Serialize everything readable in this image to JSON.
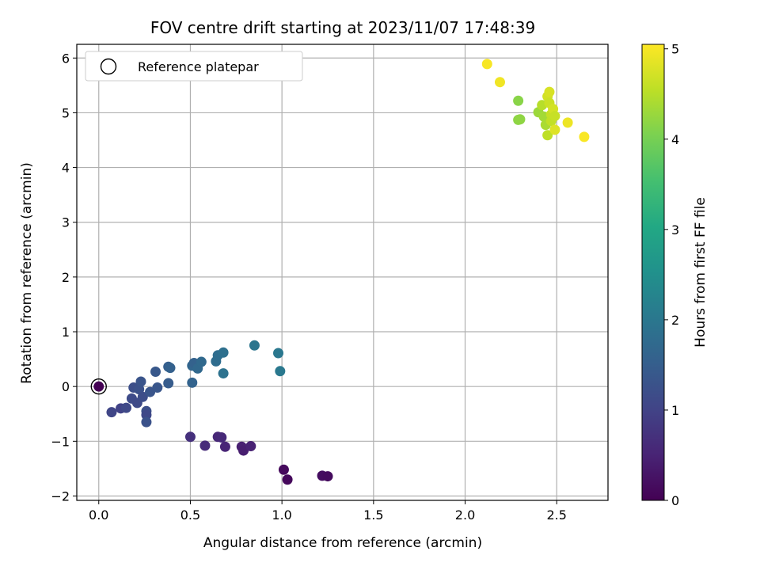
{
  "chart_data": {
    "type": "scatter",
    "title": "FOV centre drift starting at 2023/11/07 17:48:39",
    "xlabel": "Angular distance from reference (arcmin)",
    "ylabel": "Rotation from reference (arcmin)",
    "xlim": [
      -0.12,
      2.78
    ],
    "ylim": [
      -2.08,
      6.25
    ],
    "xticks": [
      0.0,
      0.5,
      1.0,
      1.5,
      2.0,
      2.5
    ],
    "xtick_labels": [
      "0.0",
      "0.5",
      "1.0",
      "1.5",
      "2.0",
      "2.5"
    ],
    "yticks": [
      -2,
      -1,
      0,
      1,
      2,
      3,
      4,
      5,
      6
    ],
    "ytick_labels": [
      "−2",
      "−1",
      "0",
      "1",
      "2",
      "3",
      "4",
      "5",
      "6"
    ],
    "grid": true,
    "legend": {
      "position": "upper-left",
      "entries": [
        {
          "label": "Reference platepar",
          "marker": "open-circle"
        }
      ]
    },
    "colorbar": {
      "label": "Hours from first FF file",
      "colormap": "viridis",
      "range": [
        0,
        5.05
      ],
      "ticks": [
        0,
        1,
        2,
        3,
        4,
        5
      ],
      "tick_labels": [
        "0",
        "1",
        "2",
        "3",
        "4",
        "5"
      ]
    },
    "reference_point": {
      "x": 0.0,
      "y": 0.0
    },
    "points": [
      {
        "x": 0.0,
        "y": 0.0,
        "c": 0.0
      },
      {
        "x": 1.01,
        "y": -1.52,
        "c": 0.12
      },
      {
        "x": 1.03,
        "y": -1.7,
        "c": 0.1
      },
      {
        "x": 1.22,
        "y": -1.63,
        "c": 0.18
      },
      {
        "x": 1.25,
        "y": -1.64,
        "c": 0.15
      },
      {
        "x": 0.78,
        "y": -1.1,
        "c": 0.45
      },
      {
        "x": 0.79,
        "y": -1.17,
        "c": 0.42
      },
      {
        "x": 0.83,
        "y": -1.09,
        "c": 0.48
      },
      {
        "x": 0.65,
        "y": -0.92,
        "c": 0.55
      },
      {
        "x": 0.67,
        "y": -0.93,
        "c": 0.58
      },
      {
        "x": 0.69,
        "y": -1.1,
        "c": 0.52
      },
      {
        "x": 0.58,
        "y": -1.08,
        "c": 0.62
      },
      {
        "x": 0.5,
        "y": -0.92,
        "c": 0.7
      },
      {
        "x": 0.07,
        "y": -0.47,
        "c": 1.05
      },
      {
        "x": 0.12,
        "y": -0.4,
        "c": 1.0
      },
      {
        "x": 0.15,
        "y": -0.39,
        "c": 1.1
      },
      {
        "x": 0.18,
        "y": -0.22,
        "c": 1.15
      },
      {
        "x": 0.19,
        "y": -0.02,
        "c": 1.2
      },
      {
        "x": 0.21,
        "y": -0.3,
        "c": 1.12
      },
      {
        "x": 0.22,
        "y": -0.05,
        "c": 1.25
      },
      {
        "x": 0.23,
        "y": 0.09,
        "c": 1.3
      },
      {
        "x": 0.24,
        "y": -0.19,
        "c": 1.18
      },
      {
        "x": 0.26,
        "y": -0.45,
        "c": 1.22
      },
      {
        "x": 0.26,
        "y": -0.52,
        "c": 1.08
      },
      {
        "x": 0.26,
        "y": -0.65,
        "c": 1.28
      },
      {
        "x": 0.28,
        "y": -0.1,
        "c": 1.32
      },
      {
        "x": 0.31,
        "y": 0.27,
        "c": 1.38
      },
      {
        "x": 0.32,
        "y": -0.02,
        "c": 1.35
      },
      {
        "x": 0.38,
        "y": 0.06,
        "c": 1.45
      },
      {
        "x": 0.38,
        "y": 0.36,
        "c": 1.5
      },
      {
        "x": 0.39,
        "y": 0.34,
        "c": 1.55
      },
      {
        "x": 0.51,
        "y": 0.07,
        "c": 1.6
      },
      {
        "x": 0.51,
        "y": 0.38,
        "c": 1.65
      },
      {
        "x": 0.52,
        "y": 0.43,
        "c": 1.58
      },
      {
        "x": 0.54,
        "y": 0.33,
        "c": 1.7
      },
      {
        "x": 0.56,
        "y": 0.45,
        "c": 1.72
      },
      {
        "x": 0.64,
        "y": 0.46,
        "c": 1.78
      },
      {
        "x": 0.65,
        "y": 0.57,
        "c": 1.8
      },
      {
        "x": 0.68,
        "y": 0.62,
        "c": 1.85
      },
      {
        "x": 0.68,
        "y": 0.24,
        "c": 1.9
      },
      {
        "x": 0.85,
        "y": 0.75,
        "c": 1.95
      },
      {
        "x": 0.98,
        "y": 0.61,
        "c": 2.0
      },
      {
        "x": 0.99,
        "y": 0.28,
        "c": 2.02
      },
      {
        "x": 2.12,
        "y": 5.89,
        "c": 5.0
      },
      {
        "x": 2.19,
        "y": 5.56,
        "c": 4.95
      },
      {
        "x": 2.29,
        "y": 5.22,
        "c": 4.15
      },
      {
        "x": 2.29,
        "y": 4.87,
        "c": 4.18
      },
      {
        "x": 2.3,
        "y": 4.88,
        "c": 4.2
      },
      {
        "x": 2.4,
        "y": 5.01,
        "c": 4.3
      },
      {
        "x": 2.42,
        "y": 5.14,
        "c": 4.5
      },
      {
        "x": 2.43,
        "y": 4.93,
        "c": 4.35
      },
      {
        "x": 2.44,
        "y": 4.78,
        "c": 4.4
      },
      {
        "x": 2.45,
        "y": 4.59,
        "c": 4.55
      },
      {
        "x": 2.45,
        "y": 5.3,
        "c": 4.7
      },
      {
        "x": 2.46,
        "y": 5.38,
        "c": 4.75
      },
      {
        "x": 2.46,
        "y": 5.18,
        "c": 4.65
      },
      {
        "x": 2.47,
        "y": 4.97,
        "c": 4.6
      },
      {
        "x": 2.47,
        "y": 4.85,
        "c": 4.58
      },
      {
        "x": 2.48,
        "y": 5.07,
        "c": 4.72
      },
      {
        "x": 2.49,
        "y": 4.94,
        "c": 4.62
      },
      {
        "x": 2.49,
        "y": 4.69,
        "c": 4.8
      },
      {
        "x": 2.56,
        "y": 4.82,
        "c": 4.92
      },
      {
        "x": 2.65,
        "y": 4.56,
        "c": 5.02
      }
    ]
  }
}
